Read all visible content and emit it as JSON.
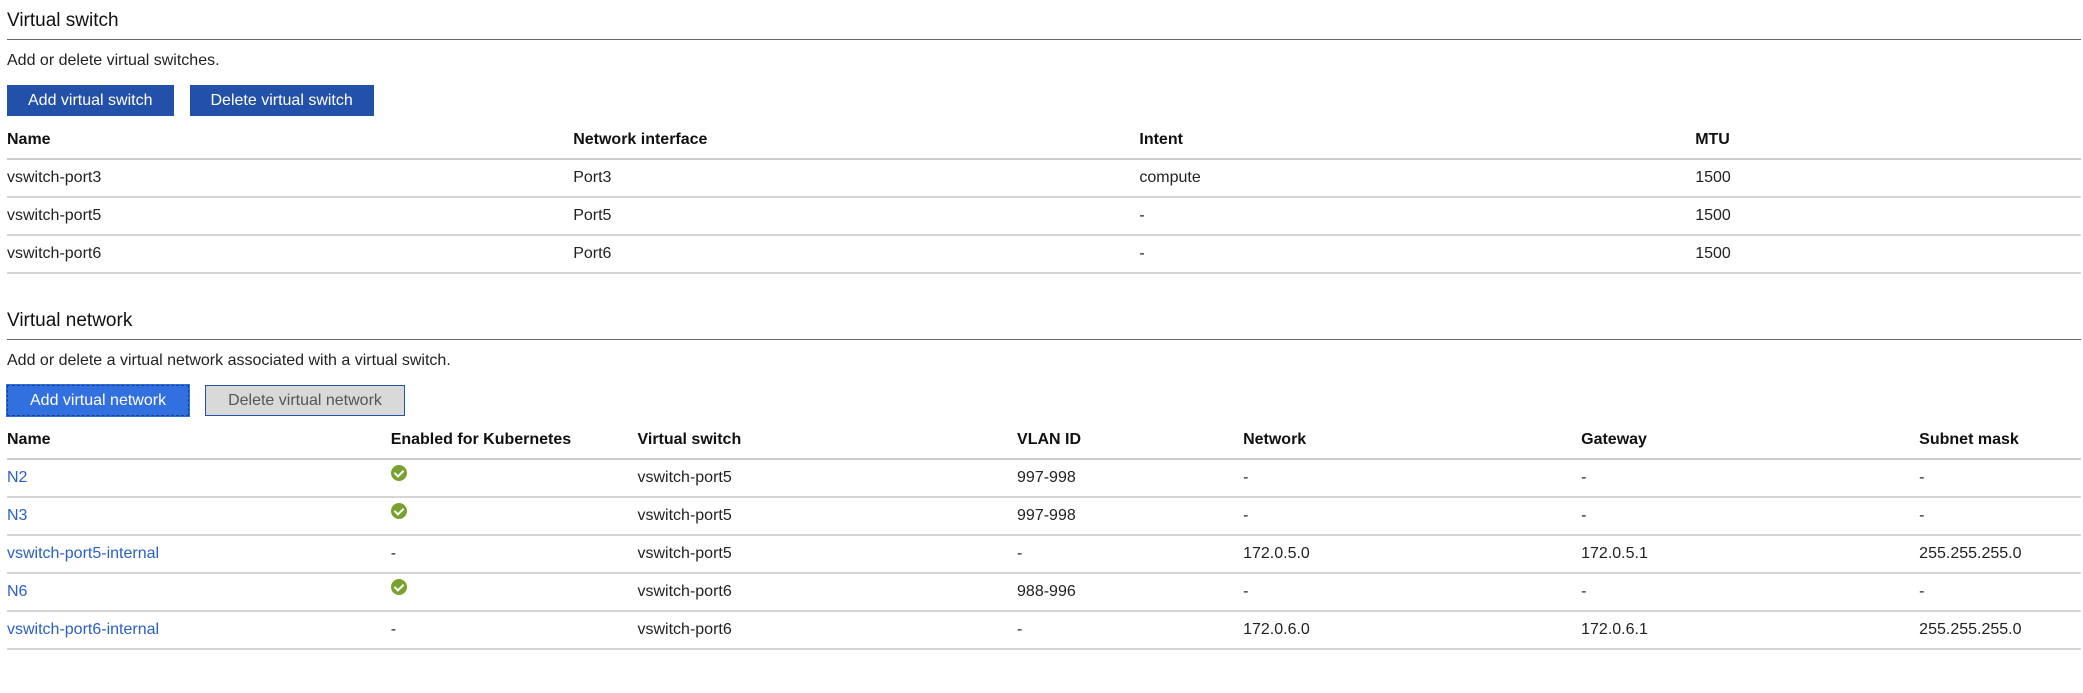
{
  "virtual_switch": {
    "title": "Virtual switch",
    "description": "Add or delete virtual switches.",
    "add_label": "Add virtual switch",
    "delete_label": "Delete virtual switch",
    "columns": [
      "Name",
      "Network interface",
      "Intent",
      "MTU"
    ],
    "rows": [
      [
        "vswitch-port3",
        "Port3",
        "compute",
        "1500"
      ],
      [
        "vswitch-port5",
        "Port5",
        "-",
        "1500"
      ],
      [
        "vswitch-port6",
        "Port6",
        "-",
        "1500"
      ]
    ]
  },
  "virtual_network": {
    "title": "Virtual network",
    "description": "Add or delete a virtual network associated with a virtual switch.",
    "add_label": "Add virtual network",
    "delete_label": "Delete virtual network",
    "columns": [
      "Name",
      "Enabled for Kubernetes",
      "Virtual switch",
      "VLAN ID",
      "Network",
      "Gateway",
      "Subnet mask"
    ],
    "rows": [
      {
        "name": "N2",
        "kubernetes": true,
        "vswitch": "vswitch-port5",
        "vlan": "997-998",
        "network": "-",
        "gateway": "-",
        "subnet": "-"
      },
      {
        "name": "N3",
        "kubernetes": true,
        "vswitch": "vswitch-port5",
        "vlan": "997-998",
        "network": "-",
        "gateway": "-",
        "subnet": "-"
      },
      {
        "name": "vswitch-port5-internal",
        "kubernetes": "-",
        "vswitch": "vswitch-port5",
        "vlan": "-",
        "network": "172.0.5.0",
        "gateway": "172.0.5.1",
        "subnet": "255.255.255.0"
      },
      {
        "name": "N6",
        "kubernetes": true,
        "vswitch": "vswitch-port6",
        "vlan": "988-996",
        "network": "-",
        "gateway": "-",
        "subnet": "-"
      },
      {
        "name": "vswitch-port6-internal",
        "kubernetes": "-",
        "vswitch": "vswitch-port6",
        "vlan": "-",
        "network": "172.0.6.0",
        "gateway": "172.0.6.1",
        "subnet": "255.255.255.0"
      }
    ],
    "check_icon": "check-circle-icon",
    "check_color": "#78a22f",
    "link_color": "#2a5fc4"
  },
  "colors": {
    "primary_button": "#2350a8",
    "focused_button": "#3370df",
    "disabled_button": "#d9d9d9"
  }
}
